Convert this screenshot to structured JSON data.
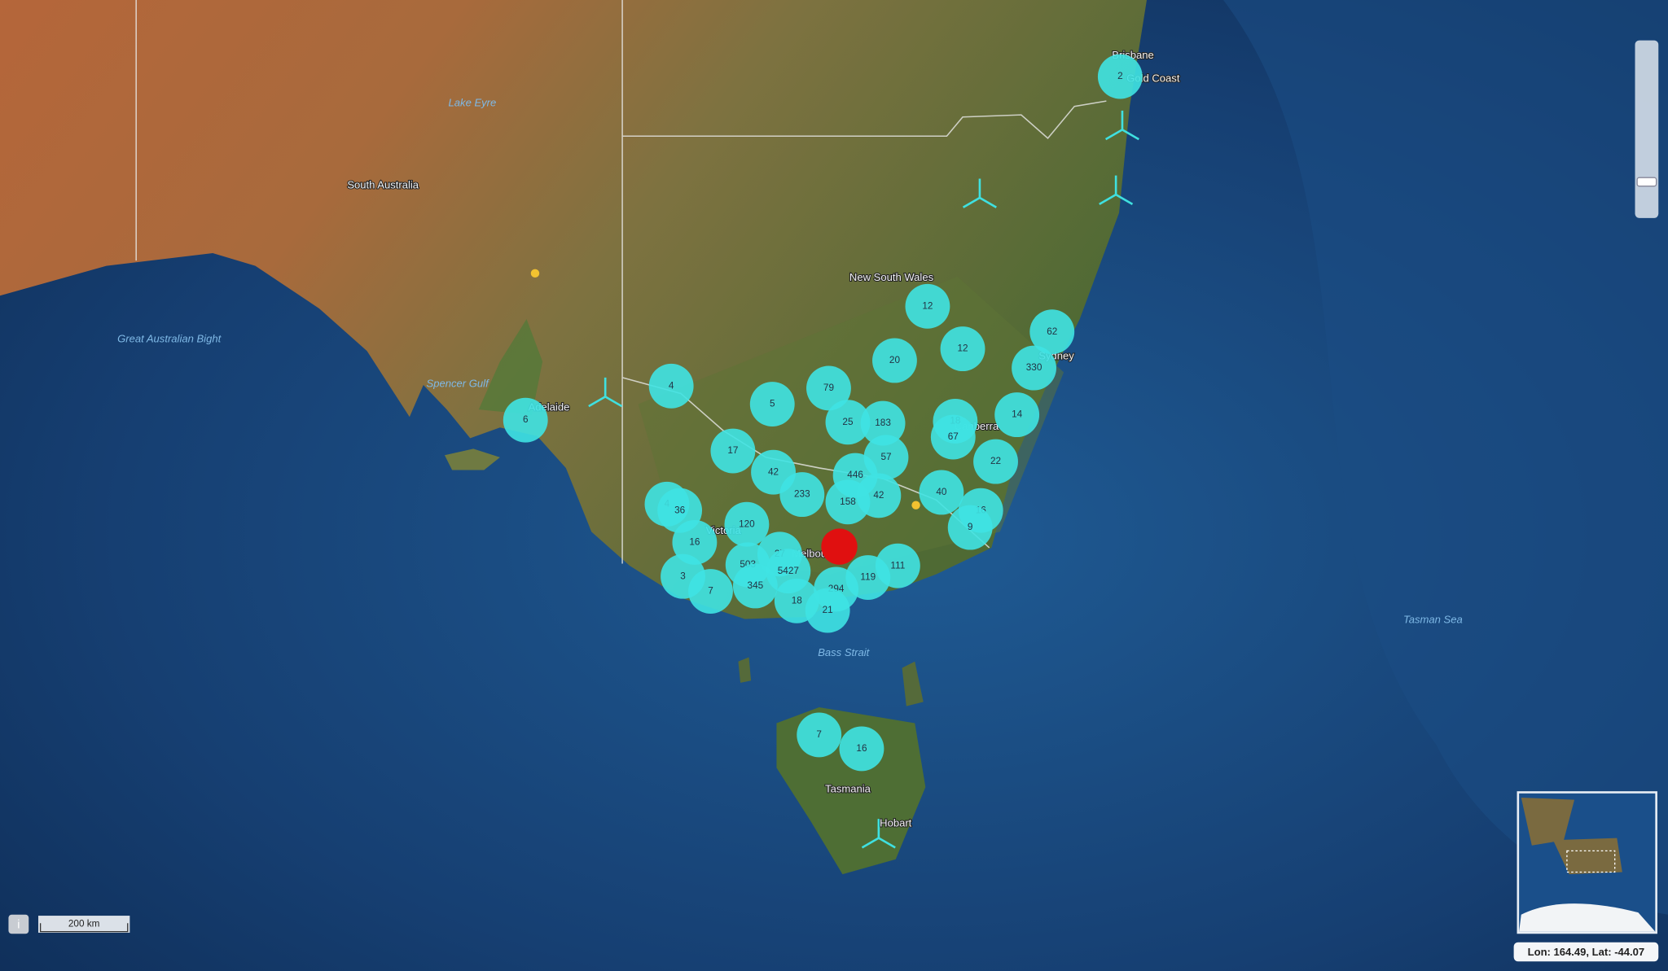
{
  "map": {
    "places": [
      "Brisbane",
      "Gold Coast",
      "Lake Eyre",
      "South Australia",
      "New South Wales",
      "Great Australian Bight",
      "Spencer Gulf",
      "Adelaide",
      "Sydney",
      "Canberra",
      "Victoria",
      "Melbourne",
      "Bass Strait",
      "Tasmania",
      "Hobart",
      "Tasman Sea"
    ],
    "clusters": [
      2,
      12,
      12,
      62,
      330,
      20,
      4,
      79,
      5,
      6,
      25,
      183,
      18,
      67,
      14,
      17,
      57,
      22,
      42,
      446,
      233,
      158,
      42,
      40,
      4,
      36,
      16,
      9,
      120,
      16,
      27,
      503,
      5427,
      111,
      3,
      119,
      7,
      345,
      294,
      18,
      21,
      7,
      16
    ],
    "scale_label": "200 km",
    "coordinates": "Lon: 164.49, Lat: -44.07",
    "info_button": "i"
  }
}
